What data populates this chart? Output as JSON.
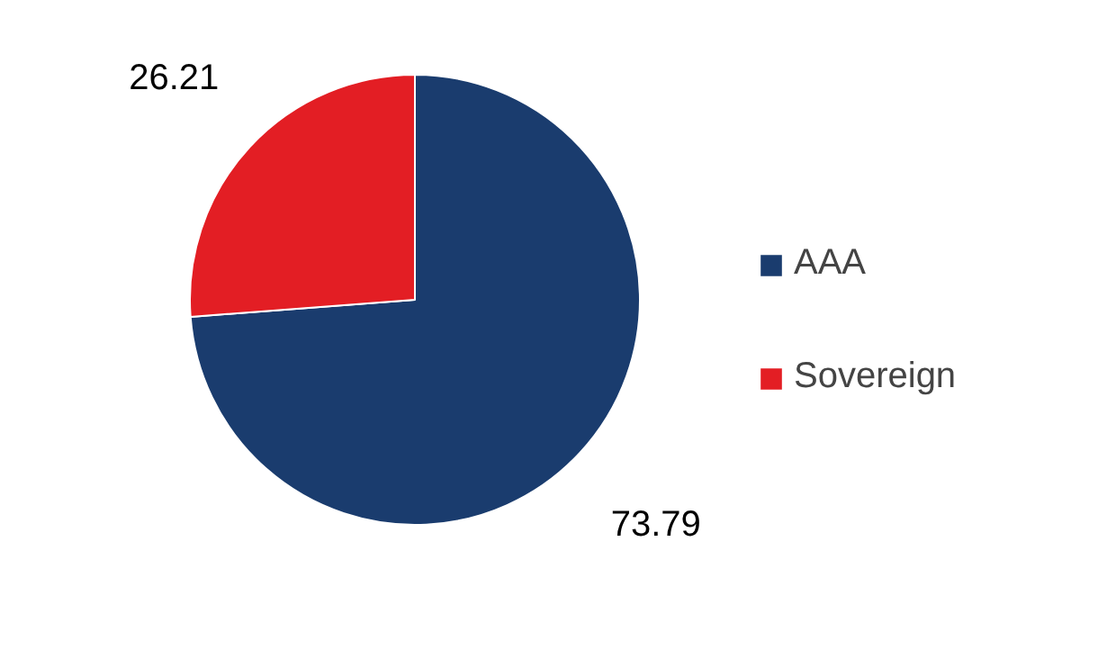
{
  "chart_data": {
    "type": "pie",
    "categories": [
      "AAA",
      "Sovereign"
    ],
    "values": [
      73.79,
      26.21
    ],
    "colors": [
      "#1a3c6e",
      "#e31e24"
    ],
    "data_labels": true,
    "legend": "right"
  }
}
